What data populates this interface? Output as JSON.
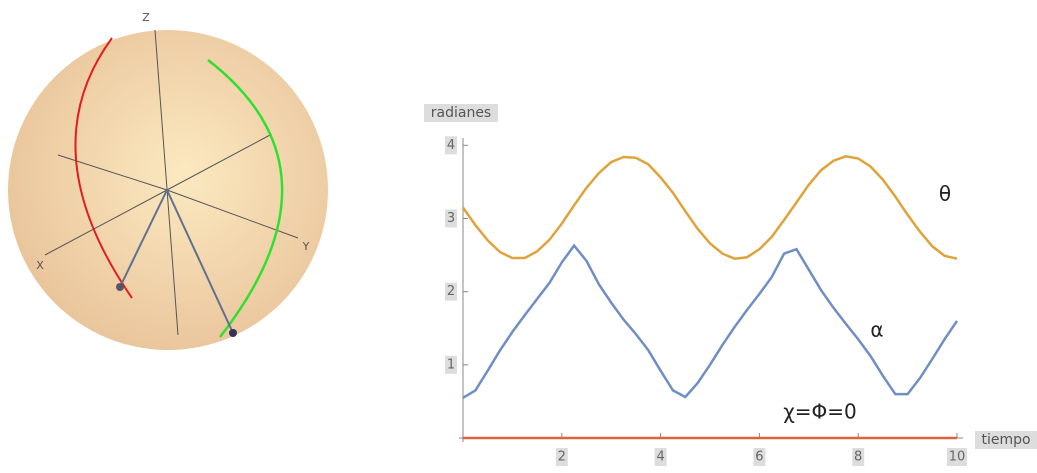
{
  "sphere": {
    "axis_labels": [
      "Z",
      "X",
      "Y"
    ]
  },
  "chart_data": {
    "type": "line",
    "ylabel": "radianes",
    "xlabel": "tiempo",
    "x": [
      0,
      0.25,
      0.5,
      0.75,
      1,
      1.25,
      1.5,
      1.75,
      2,
      2.25,
      2.5,
      2.75,
      3,
      3.25,
      3.5,
      3.75,
      4,
      4.25,
      4.5,
      4.75,
      5,
      5.25,
      5.5,
      5.75,
      6,
      6.25,
      6.5,
      6.75,
      7,
      7.25,
      7.5,
      7.75,
      8,
      8.25,
      8.5,
      8.75,
      9,
      9.25,
      9.5,
      9.75,
      10
    ],
    "series": [
      {
        "name": "θ",
        "color": "#e0a33a",
        "values": [
          3.15,
          2.91,
          2.7,
          2.54,
          2.46,
          2.46,
          2.55,
          2.71,
          2.93,
          3.18,
          3.42,
          3.62,
          3.77,
          3.84,
          3.83,
          3.74,
          3.56,
          3.35,
          3.1,
          2.86,
          2.66,
          2.52,
          2.45,
          2.47,
          2.58,
          2.75,
          2.98,
          3.22,
          3.46,
          3.66,
          3.79,
          3.85,
          3.82,
          3.71,
          3.53,
          3.3,
          3.05,
          2.82,
          2.62,
          2.49,
          2.45
        ]
      },
      {
        "name": "α",
        "color": "#6f8fc4",
        "values": [
          0.55,
          0.65,
          0.92,
          1.2,
          1.45,
          1.68,
          1.9,
          2.12,
          2.4,
          2.63,
          2.42,
          2.1,
          1.85,
          1.62,
          1.42,
          1.2,
          0.92,
          0.65,
          0.56,
          0.75,
          1.0,
          1.27,
          1.52,
          1.75,
          1.97,
          2.2,
          2.52,
          2.58,
          2.3,
          2.02,
          1.78,
          1.56,
          1.35,
          1.12,
          0.85,
          0.6,
          0.6,
          0.82,
          1.08,
          1.35,
          1.6
        ]
      },
      {
        "name": "χ=Φ=0",
        "color": "#e0623a",
        "values": [
          0,
          0,
          0,
          0,
          0,
          0,
          0,
          0,
          0,
          0,
          0,
          0,
          0,
          0,
          0,
          0,
          0,
          0,
          0,
          0,
          0,
          0,
          0,
          0,
          0,
          0,
          0,
          0,
          0,
          0,
          0,
          0,
          0,
          0,
          0,
          0,
          0,
          0,
          0,
          0,
          0
        ]
      }
    ],
    "xlim": [
      0,
      10
    ],
    "xticks": [
      2,
      4,
      6,
      8,
      10
    ],
    "ylim": [
      0,
      4.1
    ],
    "yticks": [
      1,
      2,
      3,
      4
    ]
  }
}
